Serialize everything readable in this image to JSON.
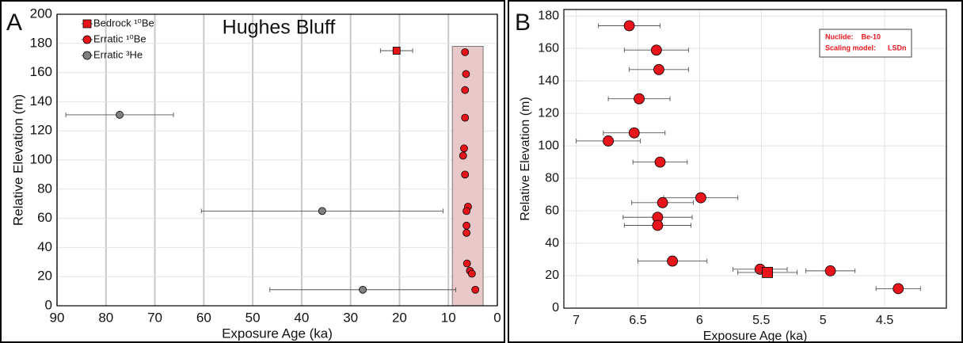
{
  "chart_data": [
    {
      "type": "scatter",
      "panel": "A",
      "title": "Hughes Bluff",
      "x_label": "Exposure Age (ka)",
      "y_label": "Relative Elevation (m)",
      "xlim": [
        90,
        0
      ],
      "xticks": [
        90,
        80,
        70,
        60,
        50,
        40,
        30,
        20,
        10,
        0
      ],
      "ylim": [
        0,
        200
      ],
      "yticks": [
        0,
        20,
        40,
        60,
        80,
        100,
        120,
        140,
        160,
        180,
        200
      ],
      "grid": true,
      "legend": "upper left",
      "shaded_region": {
        "xlim": [
          9.2,
          2.9
        ],
        "ylim": [
          0,
          178
        ],
        "color": "#e8c8c8"
      },
      "series": [
        {
          "name": "Bedrock ¹⁰Be",
          "color": "#e8141c",
          "marker": "square",
          "x": [
            20.6
          ],
          "y": [
            175
          ],
          "xerr": [
            3.3
          ]
        },
        {
          "name": "Erratic ¹⁰Be",
          "color": "#e8141c",
          "marker": "circle",
          "x": [
            6.6,
            6.4,
            6.6,
            6.6,
            6.8,
            7.0,
            6.6,
            6.0,
            6.3,
            6.3,
            6.3,
            6.2,
            5.6,
            5.2,
            4.5
          ],
          "y": [
            174,
            159,
            148,
            129,
            108,
            103,
            90,
            68,
            65,
            55,
            50,
            29,
            24,
            22,
            11
          ],
          "xerr": [
            null,
            null,
            null,
            null,
            null,
            null,
            null,
            null,
            null,
            null,
            null,
            null,
            null,
            null,
            null
          ]
        },
        {
          "name": "Erratic ³He",
          "color": "#808080",
          "marker": "circle",
          "x": [
            77.2,
            35.8,
            27.5
          ],
          "y": [
            131,
            65,
            11
          ],
          "xerr": [
            11,
            24.7,
            19
          ]
        }
      ]
    },
    {
      "type": "scatter",
      "panel": "B",
      "x_label": "Exposure Age (ka)",
      "y_label": "Relative Elevation  (m)",
      "xlim": [
        7.1,
        4.0
      ],
      "xticks": [
        7,
        6.5,
        6,
        5.5,
        5,
        4.5
      ],
      "ylim": [
        0,
        184
      ],
      "yticks": [
        0,
        20,
        40,
        60,
        80,
        100,
        120,
        140,
        160,
        180
      ],
      "grid": true,
      "annotations": [
        "Nuclide:    Be-10",
        "Scaling model:      LSDn"
      ],
      "series": [
        {
          "color": "#e8141c",
          "marker": "circle",
          "x": [
            6.57,
            6.35,
            6.33,
            6.49,
            6.53,
            6.74,
            6.32,
            5.99,
            6.3,
            6.34,
            6.34,
            6.22,
            5.51,
            4.94,
            4.39
          ],
          "y": [
            174,
            159,
            147,
            129,
            108,
            103,
            90,
            68,
            65,
            56,
            51,
            29,
            24,
            23,
            12
          ],
          "xerr": [
            0.25,
            0.26,
            0.24,
            0.25,
            0.25,
            0.26,
            0.22,
            0.3,
            0.25,
            0.28,
            0.27,
            0.28,
            0.22,
            0.2,
            0.18
          ]
        },
        {
          "color": "#e8141c",
          "marker": "square",
          "x": [
            5.45
          ],
          "y": [
            22
          ],
          "xerr": [
            0.24
          ]
        }
      ]
    }
  ]
}
